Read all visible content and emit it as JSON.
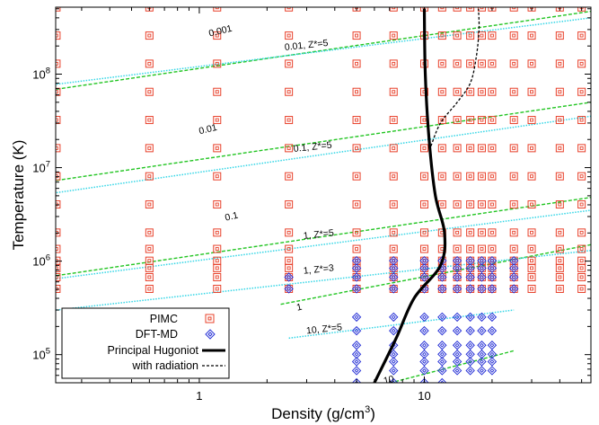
{
  "chart_data": {
    "type": "scatter",
    "title": "",
    "xlabel": "Density (g/cm",
    "xlabel_sup": "3",
    "xlabel_end": ")",
    "ylabel": "Temperature (K)",
    "xscale": "log",
    "yscale": "log",
    "xlim": [
      0.23,
      55
    ],
    "ylim": [
      50000,
      520000000
    ],
    "xticks": [
      {
        "value": 1,
        "label": "1"
      },
      {
        "value": 10,
        "label": "10"
      }
    ],
    "yticks": [
      {
        "value": 100000,
        "base": "10",
        "exp": "5"
      },
      {
        "value": 1000000,
        "base": "10",
        "exp": "6"
      },
      {
        "value": 10000000,
        "base": "10",
        "exp": "7"
      },
      {
        "value": 100000000,
        "base": "10",
        "exp": "8"
      }
    ],
    "grid": false,
    "legend_position": "bottom-left",
    "colors": {
      "pimc": "#e8402a",
      "dftmd": "#2a34d6",
      "hugoniot": "#000000",
      "radiation": "#000000",
      "degeneracy": "#22c522",
      "ionization": "#33d6e6"
    },
    "pimc": {
      "densities": [
        0.2319,
        0.6,
        1.2,
        2.5,
        5,
        7.3,
        10,
        12,
        14,
        16,
        18,
        20,
        25,
        30,
        40,
        50
      ],
      "temperatures": [
        505266,
        673688,
        841110,
        1010000,
        1350000,
        2020000,
        4040000,
        8080000,
        16160000,
        32320000,
        64640000,
        129290000,
        258570000,
        517140000
      ]
    },
    "dftmd": {
      "points": [
        [
          2.5,
          505266
        ],
        [
          2.5,
          673688
        ],
        [
          5,
          50000
        ],
        [
          5,
          67500
        ],
        [
          5,
          84200
        ],
        [
          5,
          101000
        ],
        [
          5,
          126000
        ],
        [
          5,
          180000
        ],
        [
          5,
          252000
        ],
        [
          5,
          505266
        ],
        [
          5,
          673688
        ],
        [
          5,
          841110
        ],
        [
          5,
          1010000
        ],
        [
          7.3,
          50000
        ],
        [
          7.3,
          67500
        ],
        [
          7.3,
          84200
        ],
        [
          7.3,
          101000
        ],
        [
          7.3,
          126000
        ],
        [
          7.3,
          180000
        ],
        [
          7.3,
          252000
        ],
        [
          7.3,
          505266
        ],
        [
          7.3,
          673688
        ],
        [
          7.3,
          841110
        ],
        [
          7.3,
          1010000
        ],
        [
          10,
          50000
        ],
        [
          10,
          67500
        ],
        [
          10,
          84200
        ],
        [
          10,
          101000
        ],
        [
          10,
          126000
        ],
        [
          10,
          180000
        ],
        [
          10,
          252000
        ],
        [
          10,
          505266
        ],
        [
          10,
          673688
        ],
        [
          10,
          841110
        ],
        [
          10,
          1010000
        ],
        [
          12,
          50000
        ],
        [
          12,
          67500
        ],
        [
          12,
          84200
        ],
        [
          12,
          101000
        ],
        [
          12,
          126000
        ],
        [
          12,
          180000
        ],
        [
          12,
          252000
        ],
        [
          12,
          505266
        ],
        [
          12,
          673688
        ],
        [
          12,
          841110
        ],
        [
          12,
          1010000
        ],
        [
          14,
          67500
        ],
        [
          14,
          84200
        ],
        [
          14,
          101000
        ],
        [
          14,
          126000
        ],
        [
          14,
          180000
        ],
        [
          14,
          252000
        ],
        [
          14,
          505266
        ],
        [
          14,
          673688
        ],
        [
          14,
          841110
        ],
        [
          14,
          1010000
        ],
        [
          16,
          67500
        ],
        [
          16,
          84200
        ],
        [
          16,
          101000
        ],
        [
          16,
          126000
        ],
        [
          16,
          180000
        ],
        [
          16,
          252000
        ],
        [
          16,
          505266
        ],
        [
          16,
          673688
        ],
        [
          16,
          841110
        ],
        [
          16,
          1010000
        ],
        [
          18,
          67500
        ],
        [
          18,
          84200
        ],
        [
          18,
          101000
        ],
        [
          18,
          126000
        ],
        [
          18,
          180000
        ],
        [
          18,
          252000
        ],
        [
          18,
          505266
        ],
        [
          18,
          673688
        ],
        [
          18,
          841110
        ],
        [
          18,
          1010000
        ],
        [
          20,
          67500
        ],
        [
          20,
          84200
        ],
        [
          20,
          101000
        ],
        [
          20,
          126000
        ],
        [
          20,
          180000
        ],
        [
          20,
          252000
        ],
        [
          20,
          505266
        ],
        [
          20,
          673688
        ],
        [
          20,
          841110
        ],
        [
          20,
          1010000
        ],
        [
          25,
          505266
        ],
        [
          25,
          673688
        ],
        [
          25,
          841110
        ],
        [
          25,
          1010000
        ]
      ]
    },
    "hugoniot": [
      [
        6,
        50000
      ],
      [
        7.5,
        150000
      ],
      [
        9,
        400000
      ],
      [
        11.8,
        900000
      ],
      [
        12.3,
        2000000
      ],
      [
        11.2,
        5000000
      ],
      [
        10.5,
        20000000
      ],
      [
        10.1,
        100000000
      ],
      [
        10,
        500000000
      ]
    ],
    "radiation": [
      [
        10.7,
        17000000
      ],
      [
        11.8,
        30000000
      ],
      [
        14,
        50000000
      ],
      [
        16,
        80000000
      ],
      [
        17,
        150000000
      ],
      [
        17.5,
        300000000
      ],
      [
        17.4,
        500000000
      ]
    ],
    "degeneracy_lines": [
      {
        "label": "0.001",
        "x0": 0.2319,
        "x1": 55,
        "t0": 69000000,
        "t1": 470000000
      },
      {
        "label": "0.01",
        "x0": 0.2319,
        "x1": 55,
        "t0": 7300000,
        "t1": 50000000
      },
      {
        "label": "0.1",
        "x0": 0.2319,
        "x1": 55,
        "t0": 700000,
        "t1": 4800000
      },
      {
        "label": "1",
        "x0": 2.3,
        "x1": 55,
        "t0": 345000,
        "t1": 1500000
      },
      {
        "label": "10",
        "x0": 6,
        "x1": 25,
        "t0": 45000,
        "t1": 110000
      }
    ],
    "ionization_lines": [
      {
        "label": "0.01, Z*=5",
        "x0": 0.2319,
        "x1": 55,
        "t0": 78000000,
        "t1": 400000000
      },
      {
        "label": "0.1, Z*=5",
        "x0": 0.2319,
        "x1": 55,
        "t0": 5400000,
        "t1": 35500000
      },
      {
        "label": "1, Z*=5",
        "x0": 0.2319,
        "x1": 55,
        "t0": 650000,
        "t1": 3500000
      },
      {
        "label": "1, Z*=3",
        "x0": 0.2319,
        "x1": 55,
        "t0": 300000,
        "t1": 1300000
      },
      {
        "label": "10, Z*=5",
        "x0": 2.5,
        "x1": 25,
        "t0": 150000,
        "t1": 300000
      }
    ],
    "degeneracy_labels": [
      {
        "text": "0.001",
        "x": 1.25,
        "t": 270000000,
        "angle": -13.5
      },
      {
        "text": "0.01",
        "x": 1.1,
        "t": 24000000,
        "angle": -13.5
      },
      {
        "text": "0.1",
        "x": 1.4,
        "t": 2800000,
        "angle": -13.5
      },
      {
        "text": "1",
        "x": 2.8,
        "t": 300000,
        "angle": -13.5
      },
      {
        "text": "10",
        "x": 7.0,
        "t": 50000,
        "angle": -13.5
      }
    ],
    "ionization_labels": [
      {
        "text": "0.01, Z*=5",
        "x": 3.0,
        "t": 190000000,
        "angle": -6
      },
      {
        "text": "0.1, Z*=5",
        "x": 3.2,
        "t": 15500000,
        "angle": -6
      },
      {
        "text": "1, Z*=5",
        "x": 3.4,
        "t": 1800000,
        "angle": -6
      },
      {
        "text": "1, Z*=3",
        "x": 3.4,
        "t": 760000,
        "angle": -6
      },
      {
        "text": "10, Z*=5",
        "x": 3.6,
        "t": 175000,
        "angle": -6
      }
    ],
    "legend": [
      {
        "label": "PIMC",
        "marker": "square"
      },
      {
        "label": "DFT-MD",
        "marker": "diamond"
      },
      {
        "label": "Principal Hugoniot",
        "marker": "solid-line"
      },
      {
        "label": "with radiation",
        "marker": "dashed-line"
      }
    ]
  }
}
